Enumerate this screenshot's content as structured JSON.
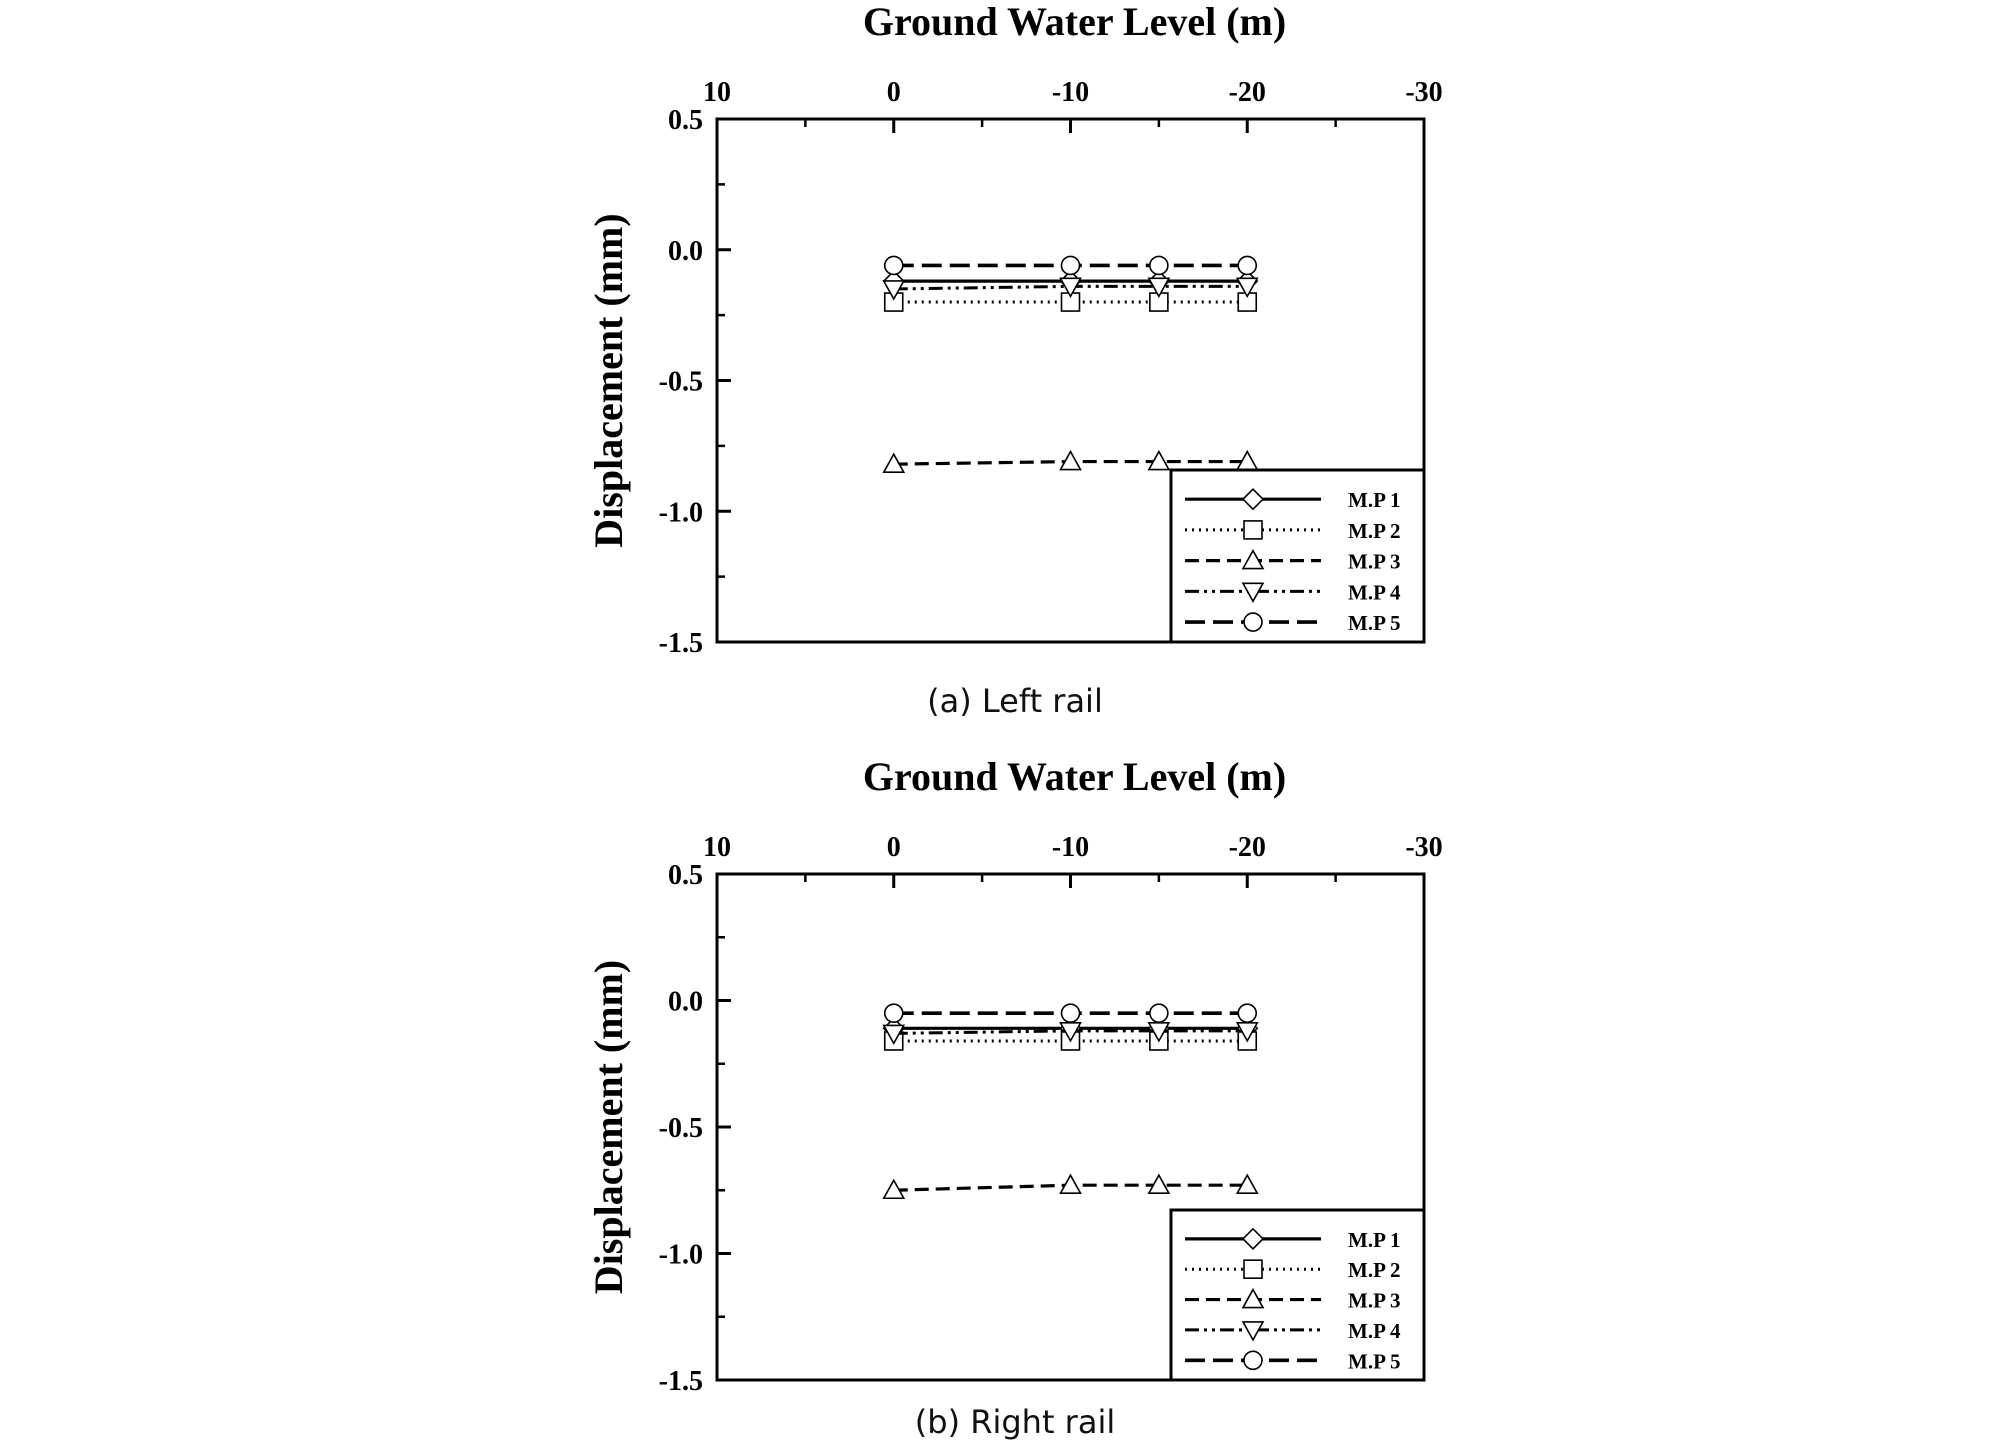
{
  "figure": {
    "legend_labels": [
      "M.P 1",
      "M.P 2",
      "M.P 3",
      "M.P 4",
      "M.P 5"
    ]
  },
  "chart_data": [
    {
      "type": "line",
      "caption": "(a)  Left  rail",
      "top_axis_title": "Ground Water Level (m)",
      "ylabel": "Displacement (mm)",
      "x_axis_position": "top",
      "xlim": [
        10,
        -30
      ],
      "ylim": [
        -1.5,
        0.5
      ],
      "x_ticks": [
        10,
        0,
        -10,
        -20,
        -30
      ],
      "x_tick_labels": [
        "10",
        "0",
        "-10",
        "-20",
        "-30"
      ],
      "y_ticks": [
        0.5,
        0.0,
        -0.5,
        -1.0,
        -1.5
      ],
      "y_tick_labels": [
        "0.5",
        "0.0",
        "-0.5",
        "-1.0",
        "-1.5"
      ],
      "grid": false,
      "legend_position": "bottom-right",
      "x": [
        0,
        -10,
        -15,
        -20
      ],
      "series": [
        {
          "name": "M.P 1",
          "values": [
            -0.12,
            -0.12,
            -0.12,
            -0.12
          ]
        },
        {
          "name": "M.P 2",
          "values": [
            -0.2,
            -0.2,
            -0.2,
            -0.2
          ]
        },
        {
          "name": "M.P 3",
          "values": [
            -0.82,
            -0.81,
            -0.81,
            -0.81
          ]
        },
        {
          "name": "M.P 4",
          "values": [
            -0.15,
            -0.14,
            -0.14,
            -0.14
          ]
        },
        {
          "name": "M.P 5",
          "values": [
            -0.06,
            -0.06,
            -0.06,
            -0.06
          ]
        }
      ]
    },
    {
      "type": "line",
      "caption": "(b)  Right  rail",
      "top_axis_title": "Ground Water Level (m)",
      "ylabel": "Displacement (mm)",
      "x_axis_position": "top",
      "xlim": [
        10,
        -30
      ],
      "ylim": [
        -1.5,
        0.5
      ],
      "x_ticks": [
        10,
        0,
        -10,
        -20,
        -30
      ],
      "x_tick_labels": [
        "10",
        "0",
        "-10",
        "-20",
        "-30"
      ],
      "y_ticks": [
        0.5,
        0.0,
        -0.5,
        -1.0,
        -1.5
      ],
      "y_tick_labels": [
        "0.5",
        "0.0",
        "-0.5",
        "-1.0",
        "-1.5"
      ],
      "grid": false,
      "legend_position": "bottom-right",
      "x": [
        0,
        -10,
        -15,
        -20
      ],
      "series": [
        {
          "name": "M.P 1",
          "values": [
            -0.11,
            -0.11,
            -0.11,
            -0.11
          ]
        },
        {
          "name": "M.P 2",
          "values": [
            -0.16,
            -0.16,
            -0.16,
            -0.16
          ]
        },
        {
          "name": "M.P 3",
          "values": [
            -0.75,
            -0.73,
            -0.73,
            -0.73
          ]
        },
        {
          "name": "M.P 4",
          "values": [
            -0.13,
            -0.12,
            -0.12,
            -0.12
          ]
        },
        {
          "name": "M.P 5",
          "values": [
            -0.05,
            -0.05,
            -0.05,
            -0.05
          ]
        }
      ]
    }
  ]
}
